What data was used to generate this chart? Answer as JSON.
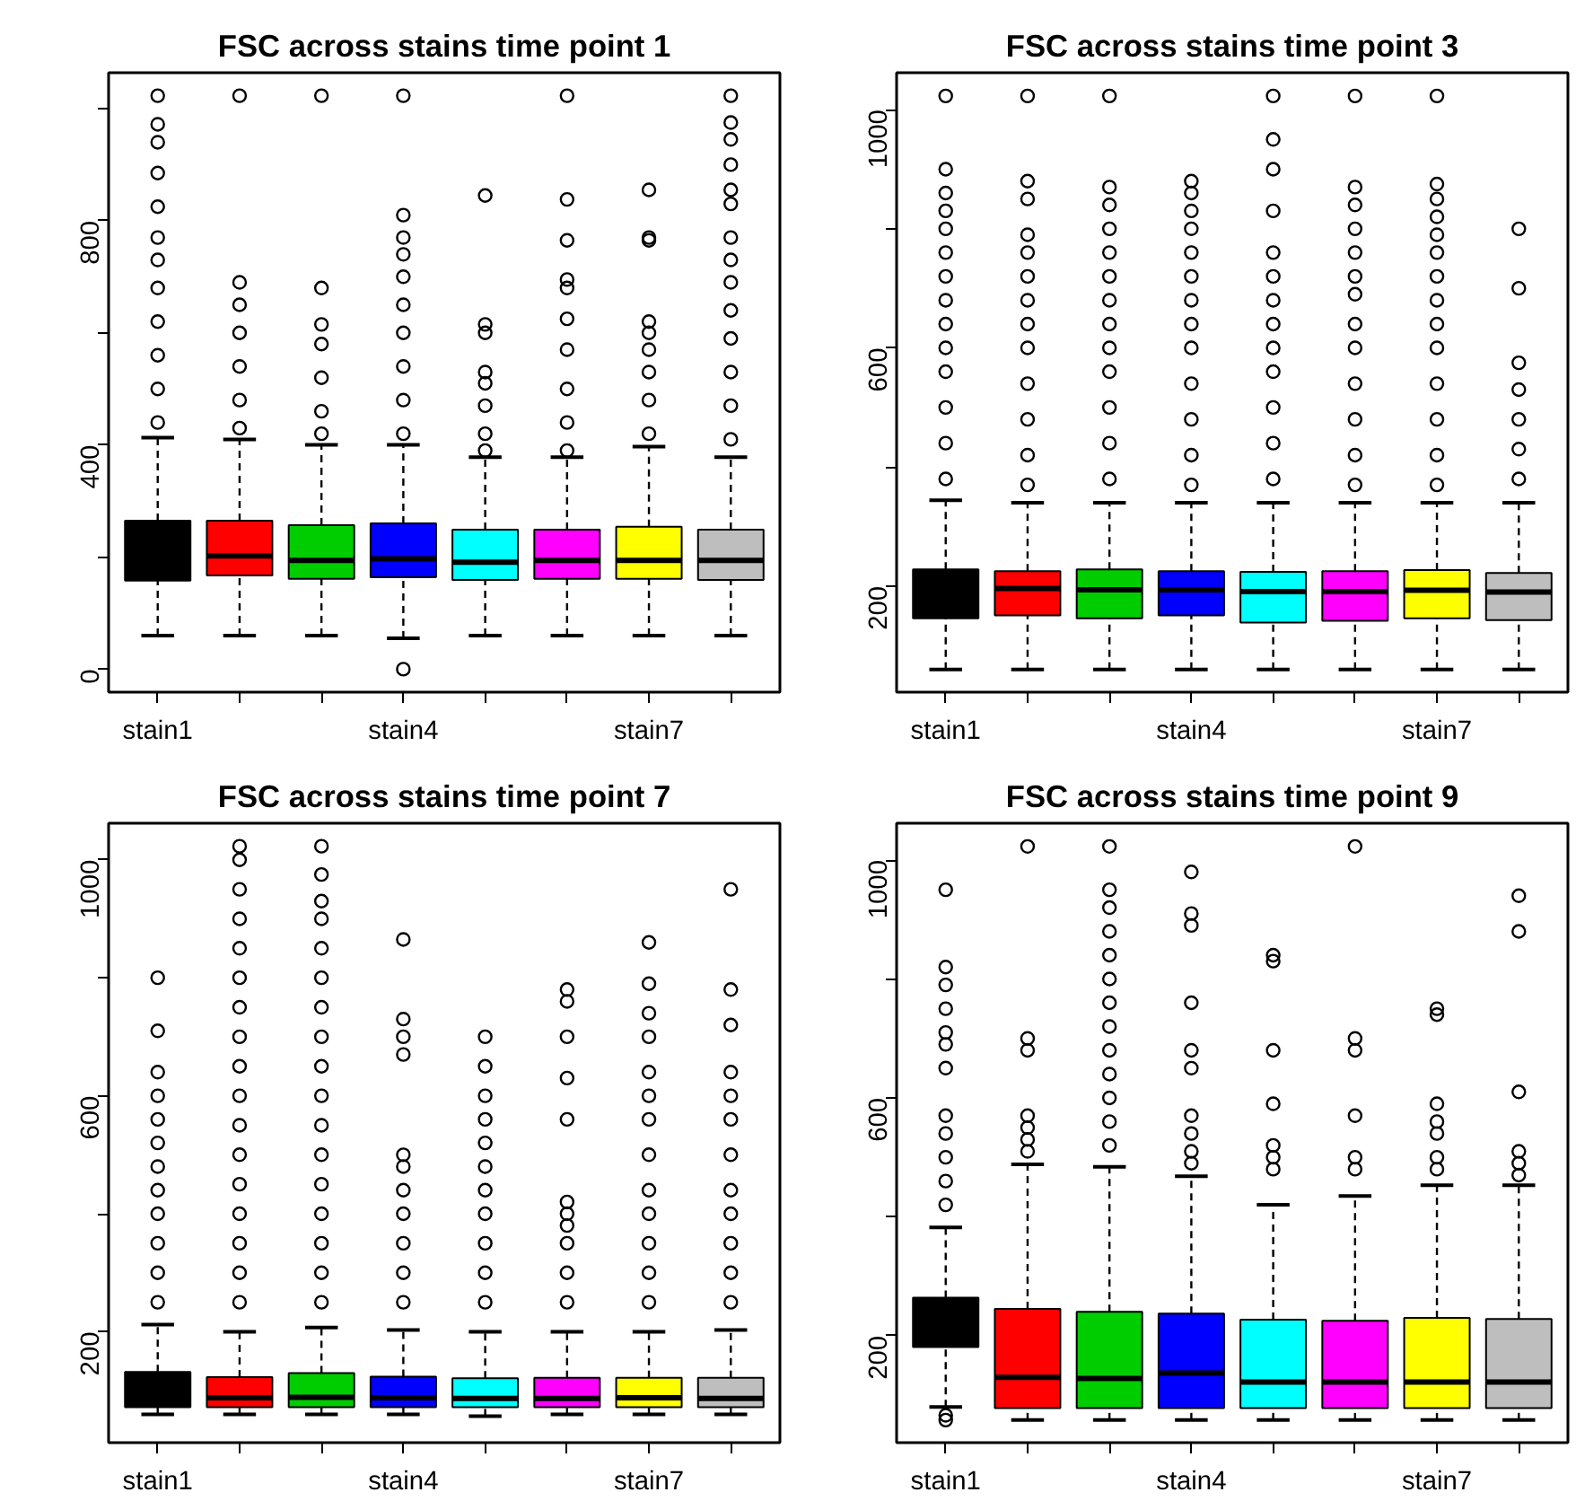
{
  "chart_data": [
    {
      "type": "box",
      "title": "FSC across stains time point 1",
      "categories": [
        "stain1",
        null,
        null,
        "stain4",
        null,
        null,
        "stain7",
        null
      ],
      "colors": [
        "#000000",
        "#ff0000",
        "#00cd00",
        "#0000ff",
        "#00ffff",
        "#ff00ff",
        "#ffff00",
        "#bebebe"
      ],
      "ylim": [
        -41,
        1064
      ],
      "yticks": [
        0,
        {
          "value": 200,
          "label": null
        },
        400,
        {
          "value": 600,
          "label": null
        },
        800,
        {
          "value": 1000,
          "label": null
        }
      ],
      "grid": false,
      "boxes": [
        {
          "low": 60,
          "q1": 158,
          "median": 196,
          "q3": 265,
          "high": 413,
          "outliers": [
            1023,
            972,
            940,
            885,
            825,
            770,
            730,
            680,
            620,
            560,
            500,
            440
          ]
        },
        {
          "low": 60,
          "q1": 167,
          "median": 202,
          "q3": 265,
          "high": 410,
          "outliers": [
            1023,
            690,
            650,
            600,
            540,
            480,
            430
          ]
        },
        {
          "low": 60,
          "q1": 161,
          "median": 194,
          "q3": 257,
          "high": 400,
          "outliers": [
            1023,
            680,
            615,
            580,
            520,
            460,
            420
          ]
        },
        {
          "low": 55,
          "q1": 164,
          "median": 197,
          "q3": 260,
          "high": 400,
          "outliers": [
            1023,
            810,
            770,
            740,
            700,
            650,
            600,
            540,
            480,
            420,
            0
          ]
        },
        {
          "low": 60,
          "q1": 159,
          "median": 191,
          "q3": 249,
          "high": 378,
          "outliers": [
            845,
            615,
            600,
            530,
            510,
            470,
            420,
            390
          ]
        },
        {
          "low": 60,
          "q1": 161,
          "median": 194,
          "q3": 249,
          "high": 378,
          "outliers": [
            1023,
            838,
            765,
            695,
            680,
            625,
            570,
            500,
            440,
            390
          ]
        },
        {
          "low": 60,
          "q1": 161,
          "median": 194,
          "q3": 254,
          "high": 397,
          "outliers": [
            855,
            770,
            765,
            620,
            600,
            570,
            530,
            480,
            420
          ]
        },
        {
          "low": 60,
          "q1": 159,
          "median": 194,
          "q3": 249,
          "high": 378,
          "outliers": [
            1023,
            975,
            945,
            900,
            855,
            830,
            770,
            730,
            690,
            640,
            590,
            530,
            470,
            410
          ]
        }
      ]
    },
    {
      "type": "box",
      "title": "FSC across stains time point 3",
      "categories": [
        "stain1",
        null,
        null,
        "stain4",
        null,
        null,
        "stain7",
        null
      ],
      "colors": [
        "#000000",
        "#ff0000",
        "#00cd00",
        "#0000ff",
        "#00ffff",
        "#ff00ff",
        "#ffff00",
        "#bebebe"
      ],
      "ylim": [
        22,
        1062
      ],
      "yticks": [
        200,
        {
          "value": 400,
          "label": null
        },
        600,
        {
          "value": 800,
          "label": null
        },
        1000
      ],
      "grid": false,
      "boxes": [
        {
          "low": 60,
          "q1": 146,
          "median": 194,
          "q3": 228,
          "high": 344,
          "outliers": [
            1023,
            900,
            860,
            830,
            800,
            760,
            720,
            680,
            640,
            600,
            560,
            500,
            440,
            380
          ]
        },
        {
          "low": 60,
          "q1": 151,
          "median": 196,
          "q3": 225,
          "high": 340,
          "outliers": [
            1023,
            880,
            850,
            790,
            760,
            720,
            680,
            640,
            600,
            540,
            480,
            420,
            370
          ]
        },
        {
          "low": 60,
          "q1": 146,
          "median": 194,
          "q3": 228,
          "high": 340,
          "outliers": [
            1023,
            870,
            840,
            800,
            760,
            720,
            680,
            640,
            600,
            560,
            500,
            440,
            380
          ]
        },
        {
          "low": 60,
          "q1": 151,
          "median": 194,
          "q3": 225,
          "high": 340,
          "outliers": [
            880,
            860,
            830,
            800,
            760,
            720,
            680,
            640,
            600,
            540,
            480,
            420,
            370
          ]
        },
        {
          "low": 60,
          "q1": 139,
          "median": 191,
          "q3": 224,
          "high": 340,
          "outliers": [
            1023,
            950,
            900,
            830,
            760,
            720,
            680,
            640,
            600,
            560,
            500,
            440,
            380
          ]
        },
        {
          "low": 60,
          "q1": 142,
          "median": 191,
          "q3": 225,
          "high": 340,
          "outliers": [
            1023,
            870,
            840,
            800,
            760,
            720,
            690,
            640,
            600,
            540,
            480,
            420,
            370
          ]
        },
        {
          "low": 60,
          "q1": 146,
          "median": 193,
          "q3": 227,
          "high": 340,
          "outliers": [
            1023,
            875,
            850,
            820,
            790,
            760,
            720,
            680,
            640,
            600,
            540,
            480,
            420,
            370
          ]
        },
        {
          "low": 60,
          "q1": 143,
          "median": 190,
          "q3": 222,
          "high": 340,
          "outliers": [
            800,
            700,
            575,
            530,
            480,
            430,
            380
          ]
        }
      ]
    },
    {
      "type": "box",
      "title": "FSC across stains time point 7",
      "categories": [
        "stain1",
        null,
        null,
        "stain4",
        null,
        null,
        "stain7",
        null
      ],
      "colors": [
        "#000000",
        "#ff0000",
        "#00cd00",
        "#0000ff",
        "#00ffff",
        "#ff00ff",
        "#ffff00",
        "#bebebe"
      ],
      "ylim": [
        12,
        1062
      ],
      "yticks": [
        200,
        {
          "value": 400,
          "label": null
        },
        600,
        {
          "value": 800,
          "label": null
        },
        1000
      ],
      "grid": false,
      "boxes": [
        {
          "low": 60,
          "q1": 72,
          "median": 90,
          "q3": 132,
          "high": 212,
          "outliers": [
            800,
            710,
            640,
            600,
            560,
            520,
            480,
            440,
            400,
            350,
            300,
            250
          ]
        },
        {
          "low": 60,
          "q1": 72,
          "median": 88,
          "q3": 123,
          "high": 200,
          "outliers": [
            1023,
            1000,
            950,
            900,
            850,
            800,
            750,
            700,
            650,
            600,
            550,
            500,
            450,
            400,
            350,
            300,
            250
          ]
        },
        {
          "low": 60,
          "q1": 72,
          "median": 89,
          "q3": 130,
          "high": 207,
          "outliers": [
            1023,
            975,
            930,
            900,
            850,
            800,
            750,
            700,
            650,
            600,
            550,
            500,
            450,
            400,
            350,
            300,
            250
          ]
        },
        {
          "low": 60,
          "q1": 72,
          "median": 88,
          "q3": 124,
          "high": 203,
          "outliers": [
            865,
            730,
            700,
            670,
            500,
            480,
            440,
            400,
            350,
            300,
            250
          ]
        },
        {
          "low": 57,
          "q1": 72,
          "median": 87,
          "q3": 121,
          "high": 200,
          "outliers": [
            700,
            650,
            600,
            560,
            520,
            480,
            440,
            400,
            350,
            300,
            250
          ]
        },
        {
          "low": 60,
          "q1": 72,
          "median": 87,
          "q3": 122,
          "high": 200,
          "outliers": [
            780,
            760,
            700,
            630,
            560,
            420,
            400,
            380,
            350,
            300,
            250
          ]
        },
        {
          "low": 60,
          "q1": 72,
          "median": 88,
          "q3": 122,
          "high": 200,
          "outliers": [
            860,
            790,
            740,
            700,
            640,
            600,
            560,
            500,
            440,
            400,
            350,
            300,
            250
          ]
        },
        {
          "low": 60,
          "q1": 72,
          "median": 87,
          "q3": 122,
          "high": 203,
          "outliers": [
            950,
            780,
            720,
            640,
            600,
            560,
            500,
            440,
            400,
            350,
            300,
            250
          ]
        }
      ]
    },
    {
      "type": "box",
      "title": "FSC across stains time point 9",
      "categories": [
        "stain1",
        null,
        null,
        "stain4",
        null,
        null,
        "stain7",
        null
      ],
      "colors": [
        "#000000",
        "#ff0000",
        "#00cd00",
        "#0000ff",
        "#00ffff",
        "#ff00ff",
        "#ffff00",
        "#bebebe"
      ],
      "ylim": [
        20,
        1062
      ],
      "yticks": [
        200,
        {
          "value": 400,
          "label": null
        },
        600,
        {
          "value": 800,
          "label": null
        },
        1000
      ],
      "grid": false,
      "boxes": [
        {
          "low": 80,
          "q1": 181,
          "median": 233,
          "q3": 264,
          "high": 382,
          "outliers": [
            950,
            820,
            790,
            750,
            710,
            690,
            650,
            570,
            540,
            500,
            460,
            420,
            66,
            58
          ]
        },
        {
          "low": 58,
          "q1": 78,
          "median": 130,
          "q3": 245,
          "high": 488,
          "outliers": [
            1023,
            700,
            680,
            570,
            550,
            530,
            510
          ]
        },
        {
          "low": 58,
          "q1": 78,
          "median": 128,
          "q3": 240,
          "high": 484,
          "outliers": [
            1023,
            950,
            920,
            880,
            840,
            800,
            760,
            720,
            680,
            640,
            600,
            560,
            520
          ]
        },
        {
          "low": 58,
          "q1": 78,
          "median": 137,
          "q3": 237,
          "high": 468,
          "outliers": [
            980,
            910,
            890,
            760,
            680,
            650,
            570,
            540,
            510,
            490
          ]
        },
        {
          "low": 58,
          "q1": 78,
          "median": 122,
          "q3": 227,
          "high": 420,
          "outliers": [
            840,
            830,
            680,
            590,
            520,
            500,
            480
          ]
        },
        {
          "low": 58,
          "q1": 78,
          "median": 122,
          "q3": 225,
          "high": 435,
          "outliers": [
            1023,
            700,
            680,
            570,
            500,
            480
          ]
        },
        {
          "low": 58,
          "q1": 78,
          "median": 122,
          "q3": 230,
          "high": 453,
          "outliers": [
            750,
            740,
            590,
            560,
            540,
            500,
            480
          ]
        },
        {
          "low": 58,
          "q1": 78,
          "median": 122,
          "q3": 228,
          "high": 453,
          "outliers": [
            940,
            880,
            610,
            510,
            490,
            470
          ]
        }
      ]
    }
  ]
}
